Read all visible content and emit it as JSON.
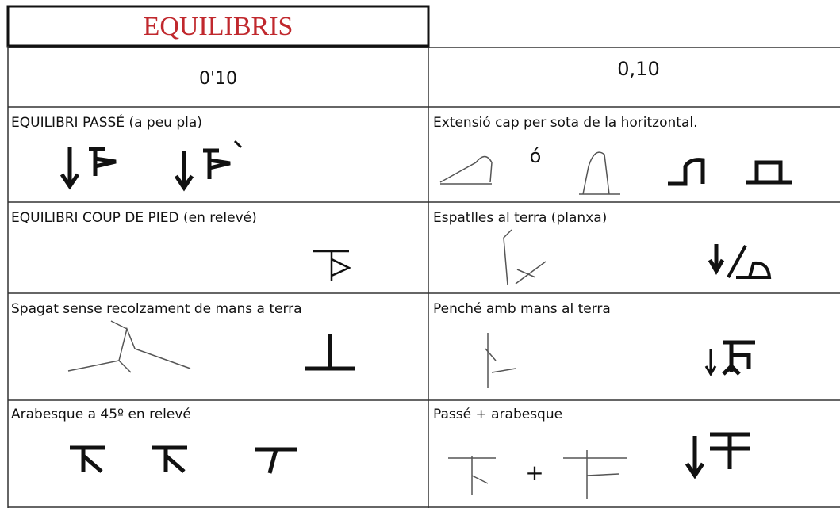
{
  "header": {
    "title": "EQUILIBRIS",
    "left_value": "0'10",
    "right_value": "0,10"
  },
  "rows": [
    {
      "left": {
        "label": "EQUILIBRI PASSÉ (a peu pla)"
      },
      "right": {
        "label": "Extensió cap per sota de la horitzontal.",
        "connector": "ó"
      }
    },
    {
      "left": {
        "label": "EQUILIBRI COUP DE PIED (en relevé)"
      },
      "right": {
        "label": "Espatlles al terra  (planxa)"
      }
    },
    {
      "left": {
        "label": "Spagat sense recolzament de mans a terra"
      },
      "right": {
        "label": "Penché amb mans al terra"
      }
    },
    {
      "left": {
        "label": "Arabesque a 45º en relevé"
      },
      "right": {
        "label": "Passé  +  arabesque",
        "connector": "+"
      }
    }
  ]
}
